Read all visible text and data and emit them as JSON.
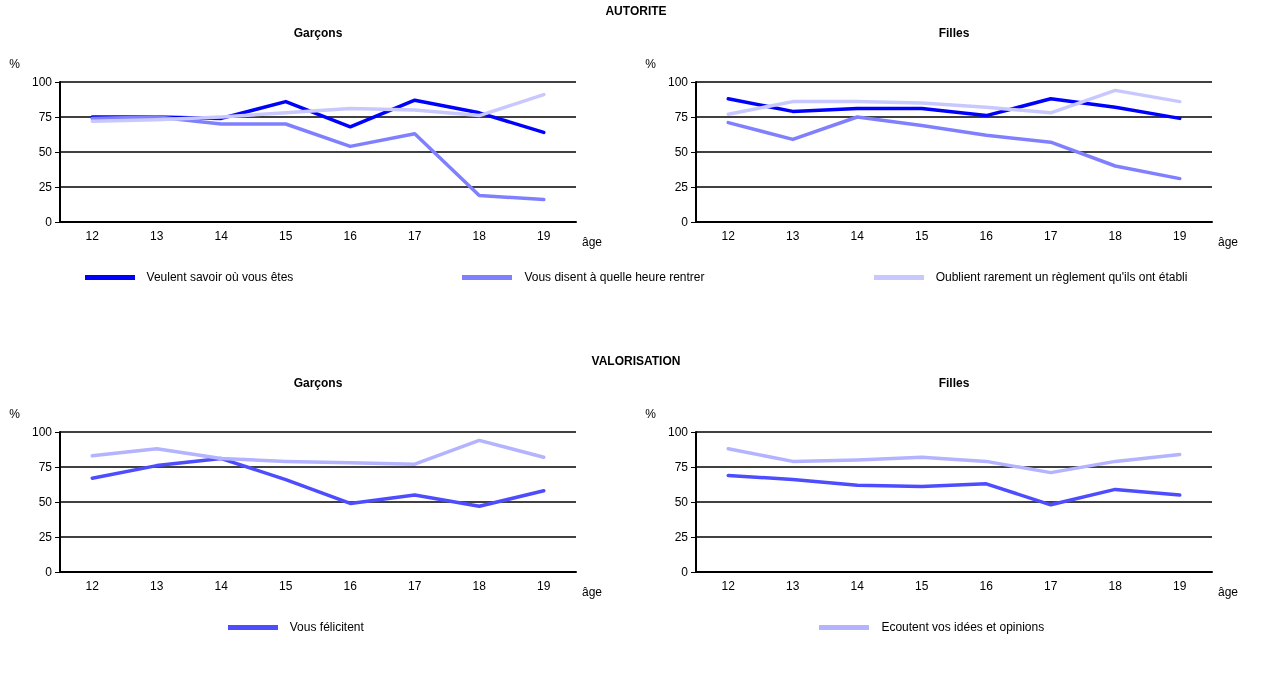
{
  "chart_data": [
    {
      "type": "line",
      "title": "Garçons",
      "annotations": [
        "AUTORITE"
      ],
      "ylabel": "%",
      "xlabel": "âge",
      "categories": [
        "12",
        "13",
        "14",
        "15",
        "16",
        "17",
        "18",
        "19"
      ],
      "ylim": [
        0,
        100
      ],
      "yticks": [
        0,
        25,
        50,
        75,
        100
      ],
      "grid": "y",
      "marker": "none",
      "legend": "bottom",
      "series": [
        {
          "name": "Veulent savoir où vous êtes",
          "color": "#0000ff",
          "values": [
            75,
            75,
            74,
            86,
            68,
            87,
            78,
            64
          ]
        },
        {
          "name": "Vous disent à quelle heure rentrer",
          "color": "#8080ff",
          "values": [
            74,
            75,
            70,
            70,
            54,
            63,
            19,
            16
          ]
        },
        {
          "name": "Oublient rarement un règlement qu'ils ont établi",
          "color": "#c8c8ff",
          "values": [
            72,
            73,
            75,
            78,
            81,
            80,
            76,
            91
          ]
        }
      ]
    },
    {
      "type": "line",
      "title": "Filles",
      "ylabel": "%",
      "xlabel": "âge",
      "categories": [
        "12",
        "13",
        "14",
        "15",
        "16",
        "17",
        "18",
        "19"
      ],
      "ylim": [
        0,
        100
      ],
      "yticks": [
        0,
        25,
        50,
        75,
        100
      ],
      "grid": "y",
      "marker": "none",
      "series": [
        {
          "color": "#0000ff",
          "values": [
            88,
            79,
            81,
            81,
            76,
            88,
            82,
            74
          ]
        },
        {
          "color": "#8080ff",
          "values": [
            71,
            59,
            75,
            69,
            62,
            57,
            40,
            31
          ]
        },
        {
          "color": "#c8c8ff",
          "values": [
            77,
            86,
            86,
            85,
            82,
            78,
            94,
            86
          ]
        }
      ]
    },
    {
      "type": "line",
      "title": "Garçons",
      "annotations": [
        "VALORISATION"
      ],
      "ylabel": "%",
      "xlabel": "âge",
      "categories": [
        "12",
        "13",
        "14",
        "15",
        "16",
        "17",
        "18",
        "19"
      ],
      "ylim": [
        0,
        100
      ],
      "yticks": [
        0,
        25,
        50,
        75,
        100
      ],
      "grid": "y",
      "marker": "none",
      "legend": "bottom",
      "series": [
        {
          "name": "Vous félicitent",
          "color": "#4d4dff",
          "values": [
            67,
            76,
            81,
            66,
            49,
            55,
            47,
            58
          ]
        },
        {
          "name": "Ecoutent vos idées et opinions",
          "color": "#b3b3ff",
          "values": [
            83,
            88,
            81,
            79,
            78,
            77,
            94,
            82
          ]
        }
      ]
    },
    {
      "type": "line",
      "title": "Filles",
      "ylabel": "%",
      "xlabel": "âge",
      "categories": [
        "12",
        "13",
        "14",
        "15",
        "16",
        "17",
        "18",
        "19"
      ],
      "ylim": [
        0,
        100
      ],
      "yticks": [
        0,
        25,
        50,
        75,
        100
      ],
      "grid": "y",
      "marker": "none",
      "series": [
        {
          "color": "#4d4dff",
          "values": [
            69,
            66,
            62,
            61,
            63,
            48,
            59,
            55
          ]
        },
        {
          "color": "#b3b3ff",
          "values": [
            88,
            79,
            80,
            82,
            79,
            71,
            79,
            84
          ]
        }
      ]
    }
  ]
}
